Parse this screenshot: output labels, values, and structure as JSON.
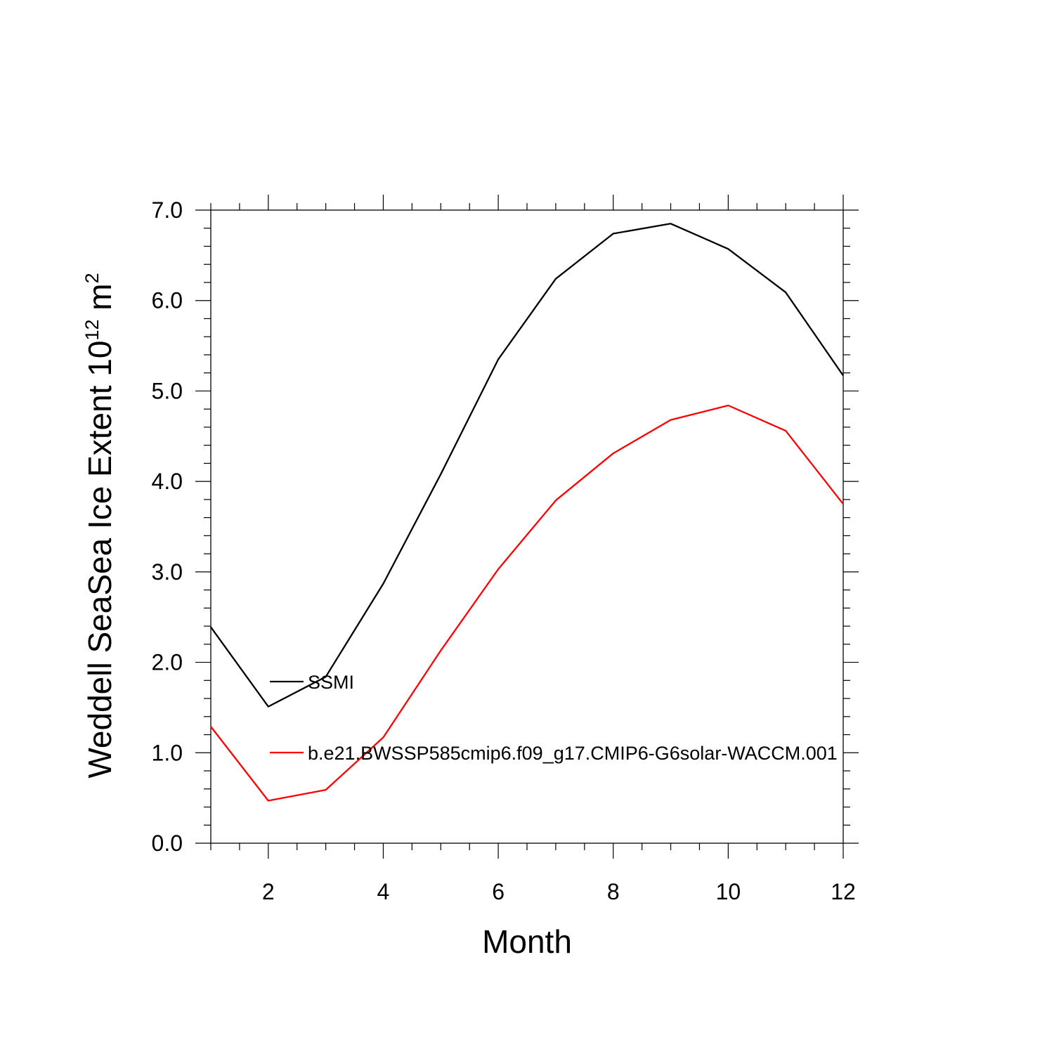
{
  "chart_data": {
    "type": "line",
    "xlabel": "Month",
    "ylabel": {
      "main": "Weddell SeaSea Ice Extent 10",
      "sup1": "12",
      "mid": " m",
      "sup2": "2"
    },
    "xlim": [
      1,
      12
    ],
    "ylim": [
      0,
      7
    ],
    "x_ticks": [
      2,
      4,
      6,
      8,
      10,
      12
    ],
    "x_tick_labels": [
      "2",
      "4",
      "6",
      "8",
      "10",
      "12"
    ],
    "y_ticks": [
      0,
      1,
      2,
      3,
      4,
      5,
      6,
      7
    ],
    "y_tick_labels": [
      "0.0",
      "1.0",
      "2.0",
      "3.0",
      "4.0",
      "5.0",
      "6.0",
      "7.0"
    ],
    "grid": false,
    "legend_position": "inside-left",
    "x": [
      1,
      2,
      3,
      4,
      5,
      6,
      7,
      8,
      9,
      10,
      11,
      12
    ],
    "series": [
      {
        "name": "SSMI",
        "color": "#000000",
        "values": [
          2.39,
          1.51,
          1.84,
          2.87,
          4.08,
          5.35,
          6.24,
          6.74,
          6.85,
          6.57,
          6.09,
          5.17
        ]
      },
      {
        "name": "b.e21.BWSSP585cmip6.f09_g17.CMIP6-G6solar-WACCM.001",
        "color": "#ff0000",
        "values": [
          1.29,
          0.47,
          0.59,
          1.17,
          2.13,
          3.03,
          3.79,
          4.31,
          4.68,
          4.84,
          4.56,
          3.75
        ]
      }
    ]
  }
}
